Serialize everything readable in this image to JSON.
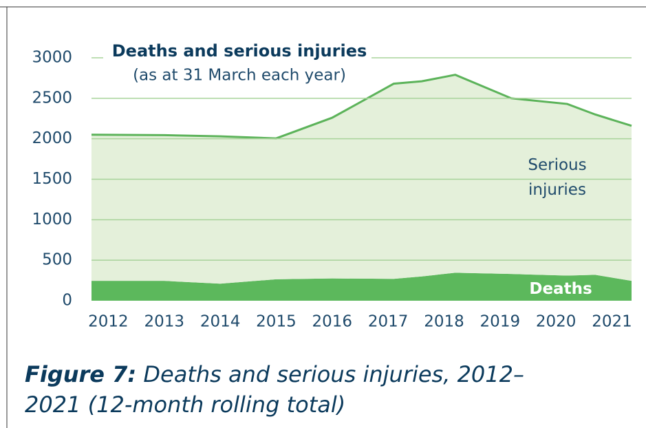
{
  "chart_data": {
    "type": "area",
    "stacked": true,
    "title": "Deaths and serious injuries",
    "subtitle": "(as at 31 March each year)",
    "x": [
      2011.7,
      2013,
      2014,
      2015,
      2016,
      2017.1,
      2017.6,
      2018.2,
      2019.2,
      2020.2,
      2020.7,
      2021.35
    ],
    "series": [
      {
        "name": "Deaths",
        "color": "#5cb85c",
        "values": [
          245,
          245,
          210,
          265,
          275,
          270,
          300,
          345,
          330,
          310,
          320,
          245
        ]
      },
      {
        "name": "Serious injuries",
        "color": "#e4f0da",
        "line_color": "#5cb35a",
        "values": [
          1805,
          1800,
          1820,
          1740,
          1985,
          2410,
          2410,
          2445,
          2170,
          2120,
          1980,
          1915
        ]
      }
    ],
    "xlim": [
      2011.7,
      2021.35
    ],
    "xticks": [
      2012,
      2013,
      2014,
      2015,
      2016,
      2017,
      2018,
      2019,
      2020,
      2021
    ],
    "ylim": [
      0,
      3000
    ],
    "yticks": [
      0,
      500,
      1000,
      1500,
      2000,
      2500,
      3000
    ],
    "grid": true,
    "grid_color": "#a8d39a"
  },
  "caption": {
    "label": "Figure 7:",
    "text": "Deaths and serious injuries, 2012–2021 (12-month rolling total)"
  }
}
